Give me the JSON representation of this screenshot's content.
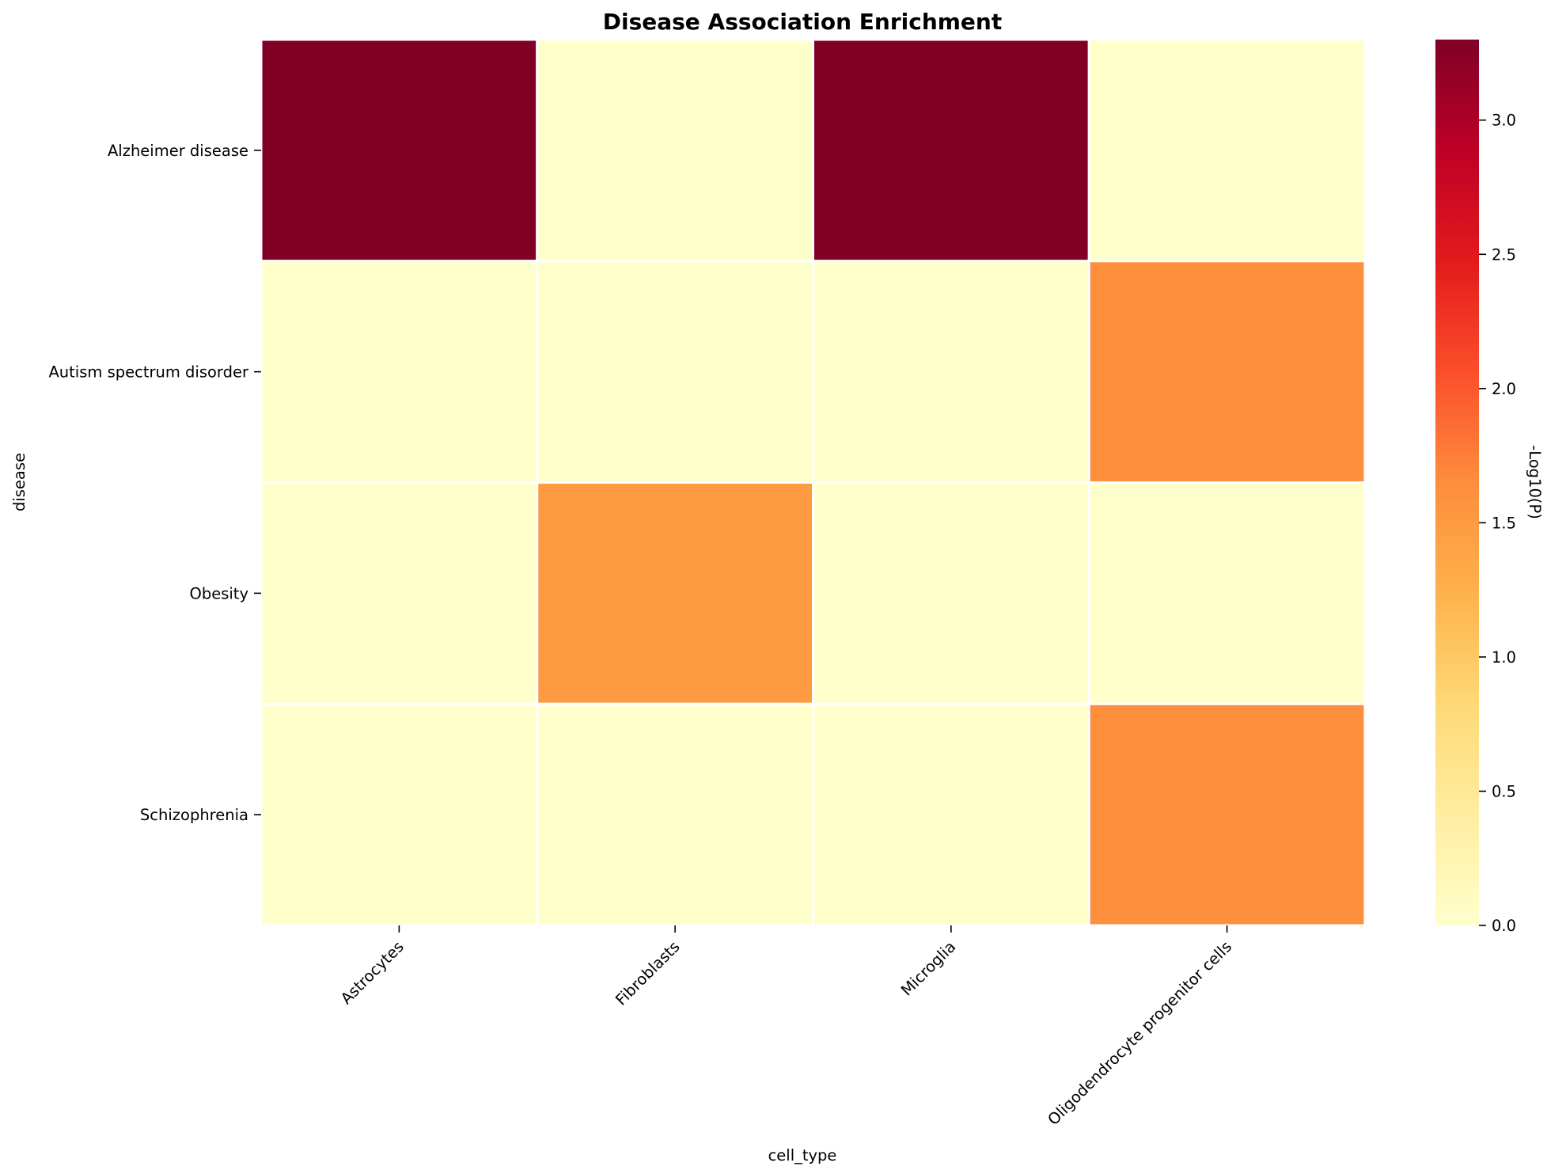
{
  "chart_data": {
    "type": "heatmap",
    "title": "Disease Association Enrichment",
    "xlabel": "cell_type",
    "ylabel": "disease",
    "x_categories": [
      "Astrocytes",
      "Fibroblasts",
      "Microglia",
      "Oligodendrocyte progenitor cells"
    ],
    "y_categories": [
      "Alzheimer disease",
      "Autism spectrum disorder",
      "Obesity",
      "Schizophrenia"
    ],
    "values": [
      [
        3.3,
        0.0,
        3.3,
        0.0
      ],
      [
        0.0,
        0.0,
        0.0,
        1.63
      ],
      [
        0.0,
        1.5,
        0.0,
        0.0
      ],
      [
        0.0,
        0.0,
        0.0,
        1.63
      ]
    ],
    "colorbar": {
      "label": "-Log10(P)",
      "range": [
        0.0,
        3.3
      ],
      "ticks": [
        "0.0",
        "0.5",
        "1.0",
        "1.5",
        "2.0",
        "2.5",
        "3.0"
      ],
      "colormap": "YlOrRd",
      "stops": [
        "#ffffcc",
        "#ffeda0",
        "#fed976",
        "#feb24c",
        "#fd8d3c",
        "#fc4e2a",
        "#e31a1c",
        "#bd0026",
        "#800026"
      ]
    },
    "grid_line_color": "#ffffff",
    "legend": "colorbar right"
  }
}
